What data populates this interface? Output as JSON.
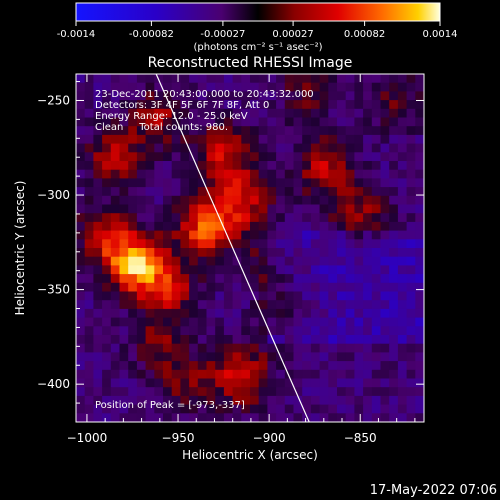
{
  "colorbar": {
    "ticks": [
      "-0.0014",
      "-0.00082",
      "-0.00027",
      "0.00027",
      "0.00082",
      "0.0014"
    ],
    "tick_values": [
      -0.0014,
      -0.00082,
      -0.00027,
      0.00027,
      0.00082,
      0.0014
    ],
    "range": [
      -0.0014,
      0.0014
    ],
    "units": "(photons cm⁻² s⁻¹ asec⁻²)"
  },
  "chart_data": {
    "type": "heatmap",
    "title": "Reconstructed RHESSI Image",
    "xlabel": "Heliocentric X (arcsec)",
    "ylabel": "Heliocentric Y (arcsec)",
    "xlim": [
      -1006,
      -815
    ],
    "ylim": [
      -420,
      -236
    ],
    "x_ticks": [
      -1000,
      -950,
      -900,
      -850
    ],
    "y_ticks": [
      -250,
      -300,
      -350,
      -400
    ],
    "annotations": [
      "23-Dec-2011 20:43:00.000 to 20:43:32.000",
      "Detectors: 3F 4F 5F 6F 7F 8F, Att 0",
      "Energy Range: 12.0 - 25.0 keV",
      "Clean     Total counts: 980."
    ],
    "peak_label": "Position of Peak = [-973,-337]",
    "peak": [
      -973,
      -337
    ],
    "sources": [
      {
        "x": -973,
        "y": -337,
        "amp": 1.0
      },
      {
        "x": -990,
        "y": -322,
        "amp": 0.55
      },
      {
        "x": -955,
        "y": -350,
        "amp": 0.55
      },
      {
        "x": -935,
        "y": -318,
        "amp": 0.8
      },
      {
        "x": -915,
        "y": -303,
        "amp": 0.6
      },
      {
        "x": -925,
        "y": -278,
        "amp": 0.55
      },
      {
        "x": -960,
        "y": -260,
        "amp": 0.45
      },
      {
        "x": -985,
        "y": -280,
        "amp": 0.5
      },
      {
        "x": -870,
        "y": -285,
        "amp": 0.55
      },
      {
        "x": -850,
        "y": -310,
        "amp": 0.45
      },
      {
        "x": -915,
        "y": -395,
        "amp": 0.65
      },
      {
        "x": -945,
        "y": -400,
        "amp": 0.35
      },
      {
        "x": -890,
        "y": -360,
        "amp": 0.3
      },
      {
        "x": -960,
        "y": -380,
        "amp": 0.35
      },
      {
        "x": -830,
        "y": -250,
        "amp": 0.3
      },
      {
        "x": -880,
        "y": -245,
        "amp": 0.3
      },
      {
        "x": -900,
        "y": -335,
        "amp": 0.25
      }
    ],
    "limb_line": {
      "from": [
        -962,
        -236
      ],
      "to": [
        -878,
        -420
      ]
    }
  },
  "footer_date": "17-May-2022 07:06"
}
